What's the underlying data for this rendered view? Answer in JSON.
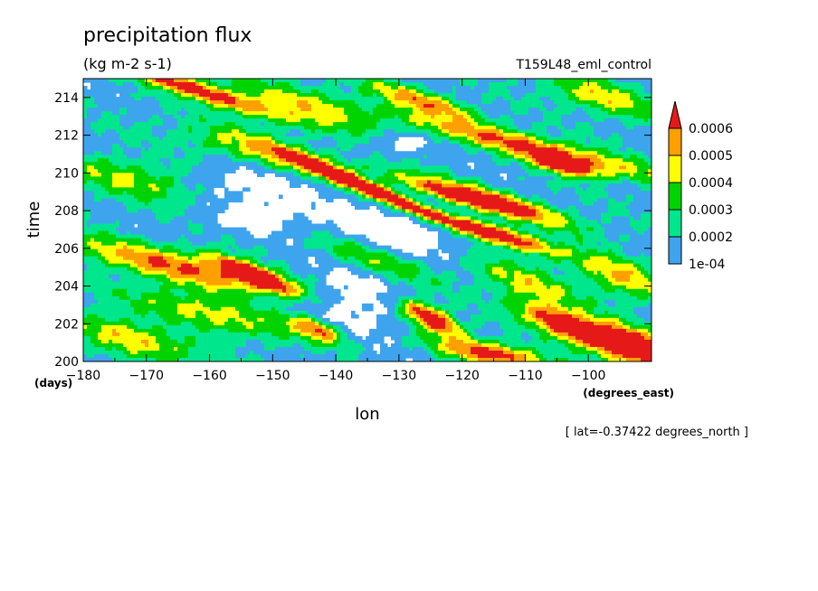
{
  "chart_data": {
    "type": "heatmap",
    "title": "precipitation flux",
    "units": "(kg m-2 s-1)",
    "experiment": "T159L48_eml_control",
    "xlabel": "lon",
    "ylabel": "time",
    "x_units": "(degrees_east)",
    "y_units": "(days)",
    "footer": "[ lat=-0.37422 degrees_north ]",
    "xlim": [
      -180,
      -90
    ],
    "ylim": [
      200,
      215
    ],
    "x_ticks": [
      -180,
      -170,
      -160,
      -150,
      -140,
      -130,
      -120,
      -110,
      -100
    ],
    "x_tick_labels": [
      "−180",
      "−170",
      "−160",
      "−150",
      "−140",
      "−130",
      "−120",
      "−110",
      "−100"
    ],
    "y_ticks": [
      200,
      202,
      204,
      206,
      208,
      210,
      212,
      214
    ],
    "y_tick_labels": [
      "200",
      "202",
      "204",
      "206",
      "208",
      "210",
      "212",
      "214"
    ],
    "colorbar": {
      "levels": [
        0.0001,
        0.0002,
        0.0003,
        0.0004,
        0.0005,
        0.0006
      ],
      "labels": [
        "1e-04",
        "0.0002",
        "0.0003",
        "0.0004",
        "0.0005",
        "0.0006"
      ],
      "colors": [
        "#ffffff",
        "#3ea4ee",
        "#00e68c",
        "#00d400",
        "#ffff00",
        "#ffa000",
        "#e61919"
      ],
      "extend": "max"
    },
    "features": [
      {
        "lon": -163,
        "t": 214.5,
        "amp": 0.00052,
        "dx": 9.0,
        "dy": 0.35,
        "slope": -0.11
      },
      {
        "lon": -108,
        "t": 211.3,
        "amp": 0.00046,
        "dx": 14.0,
        "dy": 0.45,
        "slope": -0.08
      },
      {
        "lon": -126,
        "t": 213.8,
        "amp": 0.0004,
        "dx": 6.0,
        "dy": 0.4,
        "slope": -0.1
      },
      {
        "lon": -104,
        "t": 210.4,
        "amp": 0.00058,
        "dx": 3.5,
        "dy": 0.3,
        "slope": -0.08
      },
      {
        "lon": -135,
        "t": 209.2,
        "amp": 0.00066,
        "dx": 9.0,
        "dy": 0.28,
        "slope": -0.14
      },
      {
        "lon": -121,
        "t": 208.8,
        "amp": 0.00046,
        "dx": 7.0,
        "dy": 0.35,
        "slope": -0.1
      },
      {
        "lon": -115,
        "t": 206.8,
        "amp": 0.00062,
        "dx": 7.0,
        "dy": 0.35,
        "slope": -0.1
      },
      {
        "lon": -112,
        "t": 208.3,
        "amp": 0.0004,
        "dx": 8.0,
        "dy": 0.4,
        "slope": -0.1
      },
      {
        "lon": -153,
        "t": 204.6,
        "amp": 0.00066,
        "dx": 4.5,
        "dy": 0.35,
        "slope": -0.13
      },
      {
        "lon": -165,
        "t": 205.0,
        "amp": 0.00042,
        "dx": 13.0,
        "dy": 0.6,
        "slope": -0.07
      },
      {
        "lon": -125,
        "t": 202.3,
        "amp": 0.00064,
        "dx": 3.5,
        "dy": 0.45,
        "slope": -0.15
      },
      {
        "lon": -104,
        "t": 202.0,
        "amp": 0.00058,
        "dx": 5.0,
        "dy": 0.55,
        "slope": -0.12
      },
      {
        "lon": -93,
        "t": 200.8,
        "amp": 0.00072,
        "dx": 5.0,
        "dy": 0.65,
        "slope": -0.1
      },
      {
        "lon": -115,
        "t": 200.4,
        "amp": 0.00052,
        "dx": 6.0,
        "dy": 0.4,
        "slope": -0.05
      },
      {
        "lon": -143,
        "t": 201.7,
        "amp": 0.00046,
        "dx": 3.0,
        "dy": 0.4,
        "slope": -0.1
      },
      {
        "lon": -172,
        "t": 201.2,
        "amp": 0.00035,
        "dx": 7.0,
        "dy": 0.6,
        "slope": -0.1
      },
      {
        "lon": -150,
        "t": 211.0,
        "amp": 0.0003,
        "dx": 10.0,
        "dy": 0.6,
        "slope": -0.08
      },
      {
        "lon": -98,
        "t": 214.0,
        "amp": 0.0003,
        "dx": 6.0,
        "dy": 0.6,
        "slope": -0.08
      },
      {
        "lon": -145,
        "t": 213.5,
        "amp": 0.00028,
        "dx": 9.0,
        "dy": 0.7,
        "slope": -0.07
      },
      {
        "lon": -170,
        "t": 209.5,
        "amp": 0.00028,
        "dx": 9.0,
        "dy": 0.7,
        "slope": -0.06
      },
      {
        "lon": -135,
        "t": 205.5,
        "amp": 0.0003,
        "dx": 7.0,
        "dy": 0.6,
        "slope": -0.1
      },
      {
        "lon": -160,
        "t": 202.5,
        "amp": 0.0003,
        "dx": 9.0,
        "dy": 0.6,
        "slope": -0.08
      },
      {
        "lon": -95,
        "t": 204.5,
        "amp": 0.00032,
        "dx": 5.0,
        "dy": 0.7,
        "slope": -0.1
      },
      {
        "lon": -110,
        "t": 204.2,
        "amp": 0.00026,
        "dx": 6.0,
        "dy": 0.6,
        "slope": -0.1
      }
    ],
    "dry_regions": [
      {
        "lon": -132,
        "t": 206.8,
        "dx": 9.0,
        "dy": 1.1
      },
      {
        "lon": -137,
        "t": 203.2,
        "dx": 6.0,
        "dy": 1.3
      },
      {
        "lon": -157,
        "t": 209.4,
        "dx": 8.0,
        "dy": 0.7
      },
      {
        "lon": -152,
        "t": 207.8,
        "dx": 6.0,
        "dy": 0.7
      },
      {
        "lon": -130,
        "t": 211.5,
        "dx": 3.0,
        "dy": 0.4
      }
    ]
  }
}
